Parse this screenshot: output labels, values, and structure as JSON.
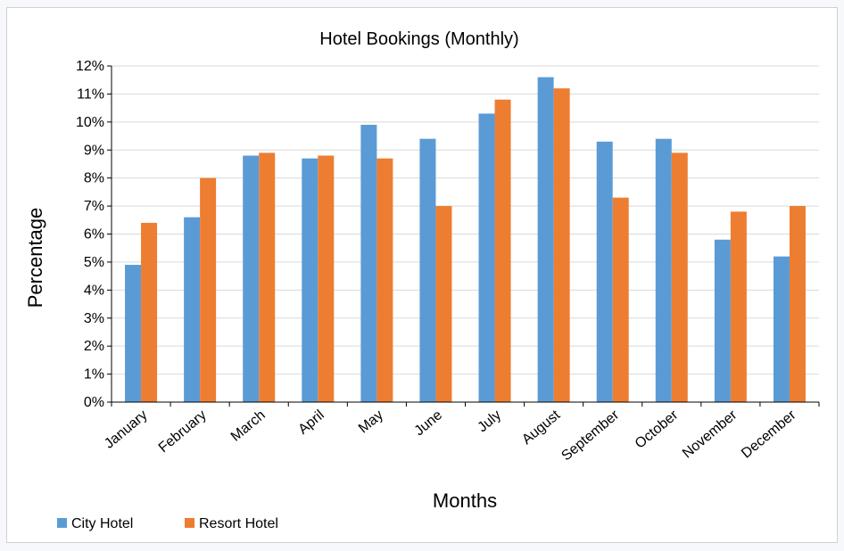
{
  "chart_data": {
    "type": "bar",
    "title": "Hotel Bookings (Monthly)",
    "xlabel": "Months",
    "ylabel": "Percentage",
    "categories": [
      "January",
      "February",
      "March",
      "April",
      "May",
      "June",
      "July",
      "August",
      "September",
      "October",
      "November",
      "December"
    ],
    "series": [
      {
        "name": "City Hotel",
        "color": "#5b9bd5",
        "values": [
          4.9,
          6.6,
          8.8,
          8.7,
          9.9,
          9.4,
          10.3,
          11.6,
          9.3,
          9.4,
          5.8,
          5.2
        ]
      },
      {
        "name": "Resort Hotel",
        "color": "#ed7d31",
        "values": [
          6.4,
          8.0,
          8.9,
          8.8,
          8.7,
          7.0,
          10.8,
          11.2,
          7.3,
          8.9,
          6.8,
          7.0
        ]
      }
    ],
    "yticks": [
      "0%",
      "1%",
      "2%",
      "3%",
      "4%",
      "5%",
      "6%",
      "7%",
      "8%",
      "9%",
      "10%",
      "11%",
      "12%"
    ],
    "ylim": [
      0,
      12
    ],
    "grid": true,
    "legend_position": "bottom-left"
  }
}
